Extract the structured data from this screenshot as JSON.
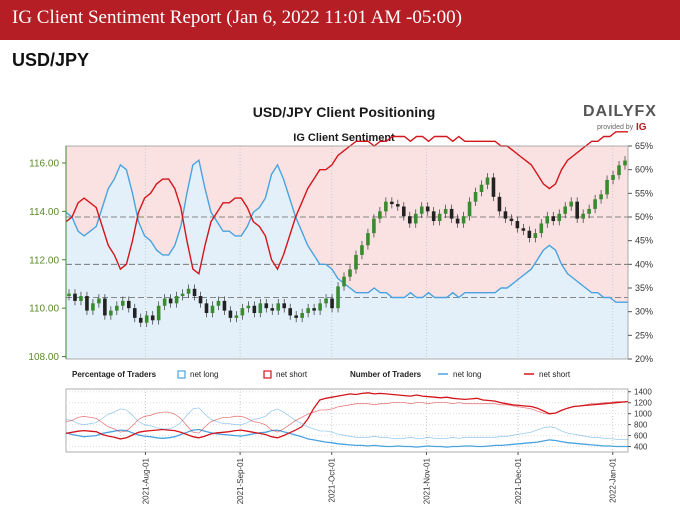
{
  "banner": {
    "title": "IG Client Sentiment Report (Jan 6, 2022 11:01 AM -05:00)"
  },
  "pair": "USD/JPY",
  "logo": {
    "brand": "DAILYFX",
    "provided_by": "provided by",
    "ig": "IG"
  },
  "colors": {
    "banner": "#b51e24",
    "net_long": "#4aa3df",
    "net_short": "#d4151b",
    "price": "#3a8a2e",
    "long_fill": "#e3f0fa",
    "short_fill": "#fbe2e2"
  },
  "chart_data": [
    {
      "type": "line",
      "title": "USD/JPY Client Positioning",
      "subtitle": "IG Client Sentiment",
      "price_axis": {
        "ticks": [
          "116.00",
          "114.00",
          "112.00",
          "110.00",
          "108.00"
        ],
        "ylim": [
          107.9,
          116.7
        ]
      },
      "pct_axis": {
        "ticks": [
          "65%",
          "60%",
          "55%",
          "50%",
          "45%",
          "40%",
          "35%",
          "30%",
          "25%",
          "20%"
        ],
        "ylim": [
          20,
          65
        ]
      },
      "x": {
        "start": "2021-07-06",
        "end": "2022-01-06",
        "ticks": [
          "2021-Aug-01",
          "2021-Sep-01",
          "2021-Oct-01",
          "2021-Nov-01",
          "2021-Dec-01",
          "2022-Jan-01"
        ],
        "tick_dates": [
          "2021-08-01",
          "2021-09-01",
          "2021-10-01",
          "2021-11-01",
          "2021-12-01",
          "2022-01-01"
        ]
      },
      "reference_lines": [
        {
          "axis": "pct",
          "value": 50
        },
        {
          "axis": "pct",
          "value": 40
        },
        {
          "axis": "pct",
          "value": 33
        }
      ],
      "series": [
        {
          "name": "USD/JPY",
          "kind": "candles",
          "values": [
            110.6,
            110.3,
            110.5,
            109.9,
            110.2,
            110.4,
            109.7,
            109.9,
            110.1,
            110.3,
            110.0,
            109.6,
            109.4,
            109.7,
            109.5,
            110.1,
            110.4,
            110.2,
            110.5,
            110.6,
            110.8,
            110.5,
            110.2,
            109.8,
            110.1,
            110.3,
            109.9,
            109.6,
            109.7,
            110.0,
            110.1,
            109.8,
            110.2,
            110.0,
            109.9,
            110.2,
            110.0,
            109.7,
            109.6,
            109.8,
            110.0,
            109.9,
            110.2,
            110.4,
            110.0,
            110.9,
            111.3,
            111.6,
            112.2,
            112.6,
            113.1,
            113.7,
            114.0,
            114.4,
            114.3,
            114.2,
            113.8,
            113.5,
            113.9,
            114.2,
            114.0,
            113.6,
            113.9,
            114.1,
            113.7,
            113.5,
            113.8,
            114.4,
            114.8,
            115.1,
            115.4,
            114.6,
            114.0,
            113.7,
            113.6,
            113.3,
            113.2,
            112.9,
            113.1,
            113.5,
            113.8,
            113.6,
            113.9,
            114.2,
            114.4,
            113.7,
            113.9,
            114.1,
            114.5,
            114.7,
            115.3,
            115.5,
            115.9,
            116.1
          ]
        },
        {
          "name": "net long",
          "kind": "percentage",
          "color": "#4aa3df",
          "values": [
            51,
            50,
            47,
            46,
            47,
            48,
            52,
            56,
            58,
            61,
            60,
            55,
            49,
            46,
            45,
            43,
            42,
            42,
            44,
            48,
            55,
            61,
            62,
            56,
            51,
            49,
            47,
            47,
            46,
            46,
            48,
            51,
            52,
            54,
            59,
            61,
            58,
            54,
            50,
            47,
            44,
            42,
            40,
            40,
            39,
            37,
            36,
            35,
            34,
            34,
            34,
            35,
            34,
            34,
            33,
            33,
            33,
            34,
            33,
            33,
            34,
            33,
            33,
            33,
            34,
            33,
            34,
            34,
            34,
            34,
            34,
            34,
            35,
            35,
            36,
            37,
            38,
            39,
            41,
            43,
            44,
            43,
            40,
            38,
            37,
            36,
            35,
            34,
            34,
            33,
            33,
            32,
            32,
            32
          ]
        },
        {
          "name": "net short",
          "kind": "percentage",
          "color": "#d4151b",
          "values": [
            49,
            50,
            53,
            54,
            53,
            52,
            48,
            44,
            42,
            39,
            40,
            45,
            51,
            54,
            55,
            57,
            58,
            58,
            56,
            52,
            45,
            39,
            38,
            44,
            49,
            51,
            53,
            53,
            54,
            54,
            52,
            49,
            48,
            46,
            41,
            39,
            42,
            46,
            50,
            53,
            56,
            58,
            60,
            60,
            61,
            63,
            64,
            65,
            66,
            66,
            66,
            65,
            66,
            66,
            67,
            67,
            67,
            66,
            67,
            67,
            66,
            67,
            67,
            67,
            66,
            67,
            66,
            66,
            66,
            66,
            66,
            66,
            65,
            65,
            64,
            63,
            62,
            61,
            59,
            57,
            56,
            57,
            60,
            62,
            63,
            64,
            65,
            66,
            66,
            67,
            67,
            68,
            68,
            68
          ]
        },
        {
          "name": "net long",
          "kind": "number",
          "color": "#4aa3df",
          "values": [
            650,
            620,
            600,
            580,
            590,
            600,
            640,
            660,
            680,
            700,
            690,
            650,
            610,
            590,
            580,
            560,
            550,
            560,
            580,
            620,
            660,
            700,
            710,
            680,
            650,
            630,
            620,
            610,
            600,
            590,
            610,
            630,
            650,
            660,
            690,
            700,
            670,
            640,
            610,
            580,
            540,
            520,
            500,
            480,
            470,
            450,
            440,
            430,
            420,
            420,
            410,
            420,
            410,
            400,
            400,
            410,
            400,
            400,
            390,
            400,
            410,
            400,
            400,
            390,
            400,
            400,
            410,
            410,
            400,
            400,
            410,
            420,
            420,
            430,
            440,
            450,
            460,
            470,
            480,
            500,
            520,
            510,
            490,
            470,
            460,
            450,
            440,
            430,
            420,
            410,
            410,
            400,
            400,
            400
          ]
        },
        {
          "name": "net short",
          "kind": "number",
          "color": "#d4151b",
          "values": [
            640,
            660,
            680,
            690,
            680,
            670,
            620,
            590,
            570,
            540,
            560,
            610,
            660,
            680,
            690,
            700,
            710,
            700,
            690,
            660,
            620,
            580,
            560,
            590,
            630,
            650,
            660,
            670,
            690,
            700,
            680,
            660,
            640,
            620,
            580,
            560,
            600,
            650,
            700,
            760,
            900,
            1100,
            1250,
            1280,
            1300,
            1320,
            1340,
            1360,
            1350,
            1370,
            1380,
            1360,
            1370,
            1360,
            1350,
            1340,
            1330,
            1320,
            1340,
            1320,
            1310,
            1300,
            1290,
            1300,
            1280,
            1270,
            1260,
            1270,
            1280,
            1250,
            1240,
            1230,
            1200,
            1180,
            1160,
            1150,
            1140,
            1130,
            1100,
            1050,
            1000,
            1010,
            1060,
            1100,
            1130,
            1140,
            1150,
            1160,
            1170,
            1180,
            1190,
            1200,
            1210,
            1220
          ]
        }
      ]
    },
    {
      "type": "line",
      "legend_left": {
        "title": "Percentage of Traders",
        "net_long": "net long",
        "net_short": "net short"
      },
      "legend_right": {
        "title": "Number of Traders",
        "net_long": "net long",
        "net_short": "net short"
      },
      "count_axis": {
        "ticks": [
          "1400",
          "1200",
          "1000",
          "800",
          "600",
          "400"
        ],
        "ylim": [
          300,
          1450
        ]
      }
    }
  ]
}
